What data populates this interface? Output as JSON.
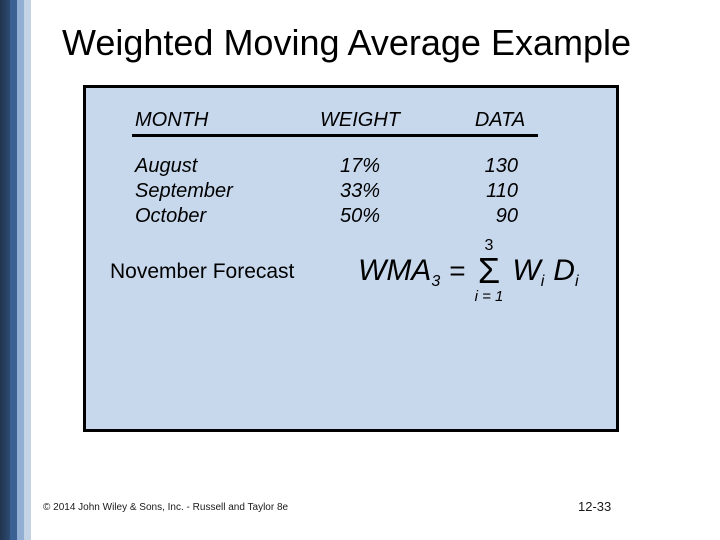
{
  "slide": {
    "title": "Weighted Moving Average Example",
    "footer_left": "© 2014 John Wiley & Sons, Inc. - Russell and Taylor 8e",
    "footer_right": "12-33"
  },
  "table": {
    "headers": {
      "month": "MONTH",
      "weight": "WEIGHT",
      "data": "DATA"
    },
    "rows": [
      {
        "month": "August",
        "weight": "17%",
        "data": "130"
      },
      {
        "month": "September",
        "weight": "33%",
        "data": "110"
      },
      {
        "month": "October",
        "weight": "50%",
        "data": "90"
      }
    ]
  },
  "forecast": {
    "label": "November Forecast",
    "formula": {
      "result_var": "WMA",
      "result_sub": "3",
      "equals": "=",
      "sum_symbol": "Σ",
      "sum_upper": "3",
      "sum_lower": "i = 1",
      "weight_var": "W",
      "weight_sub": "i",
      "data_var": "D",
      "data_sub": "i"
    }
  },
  "colors": {
    "box_fill": "#c7d8ed",
    "box_border": "#000000",
    "title_color": "#000000",
    "stripe_dark": "#20344e",
    "stripe_mid": "#3a6191",
    "stripe_light": "#92afd3",
    "stripe_pale": "#c4d2e6"
  }
}
